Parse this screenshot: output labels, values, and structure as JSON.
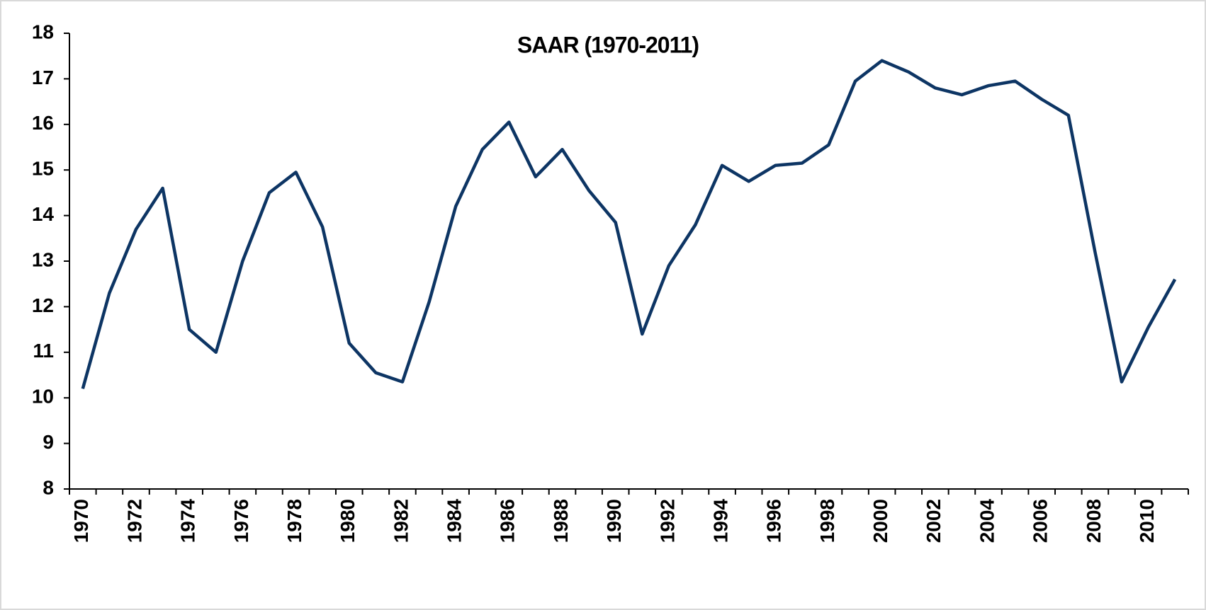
{
  "chart_data": {
    "type": "line",
    "title": "SAAR (1970-2011)",
    "categories": [
      "1970",
      null,
      "1972",
      null,
      "1974",
      null,
      "1976",
      null,
      "1978",
      null,
      "1980",
      null,
      "1982",
      null,
      "1984",
      null,
      "1986",
      null,
      "1988",
      null,
      "1990",
      null,
      "1992",
      null,
      "1994",
      null,
      "1996",
      null,
      "1998",
      null,
      "2000",
      null,
      "2002",
      null,
      "2004",
      null,
      "2006",
      null,
      "2008",
      null,
      "2010",
      null
    ],
    "values": [
      10.2,
      12.3,
      13.7,
      14.6,
      11.5,
      11.0,
      13.0,
      14.5,
      14.95,
      13.75,
      11.2,
      10.55,
      10.35,
      12.1,
      14.2,
      15.45,
      16.05,
      14.85,
      15.45,
      14.55,
      13.85,
      11.4,
      12.9,
      13.8,
      15.1,
      14.75,
      15.1,
      15.15,
      15.55,
      16.95,
      17.4,
      17.15,
      16.8,
      16.65,
      16.85,
      16.95,
      16.55,
      16.2,
      13.2,
      10.35,
      11.55,
      12.6
    ],
    "color": "#0d3564",
    "ylim": [
      8,
      18
    ],
    "yticks": [
      8,
      9,
      10,
      11,
      12,
      13,
      14,
      15,
      16,
      17,
      18
    ]
  }
}
